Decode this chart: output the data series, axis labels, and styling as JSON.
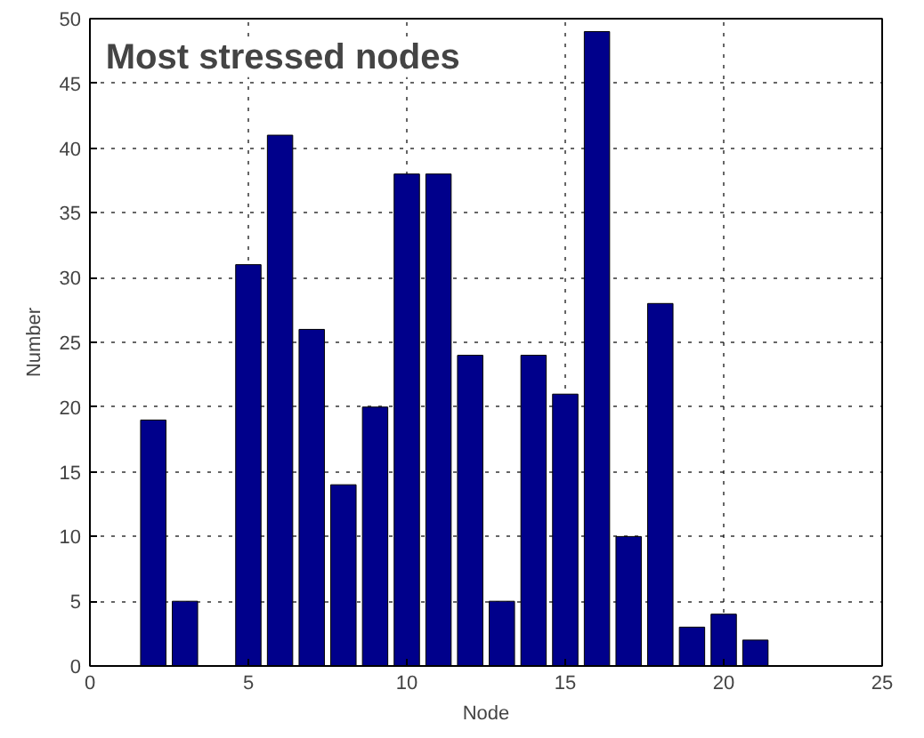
{
  "chart_data": {
    "type": "bar",
    "title": "Most stressed nodes",
    "xlabel": "Node",
    "ylabel": "Number",
    "x": [
      2,
      3,
      5,
      6,
      7,
      8,
      9,
      10,
      11,
      12,
      13,
      14,
      15,
      16,
      17,
      18,
      19,
      20,
      21
    ],
    "values": [
      19,
      5,
      31,
      41,
      26,
      14,
      20,
      38,
      38,
      24,
      5,
      24,
      21,
      49,
      10,
      28,
      3,
      4,
      2
    ],
    "color": "#00008b",
    "xlim": [
      0,
      25
    ],
    "xticks": [
      0,
      5,
      10,
      15,
      20,
      25
    ],
    "ylim": [
      0,
      50
    ],
    "yticks": [
      0,
      5,
      10,
      15,
      20,
      25,
      30,
      35,
      40,
      45,
      50
    ],
    "grid": true,
    "line_style": "dotted"
  }
}
